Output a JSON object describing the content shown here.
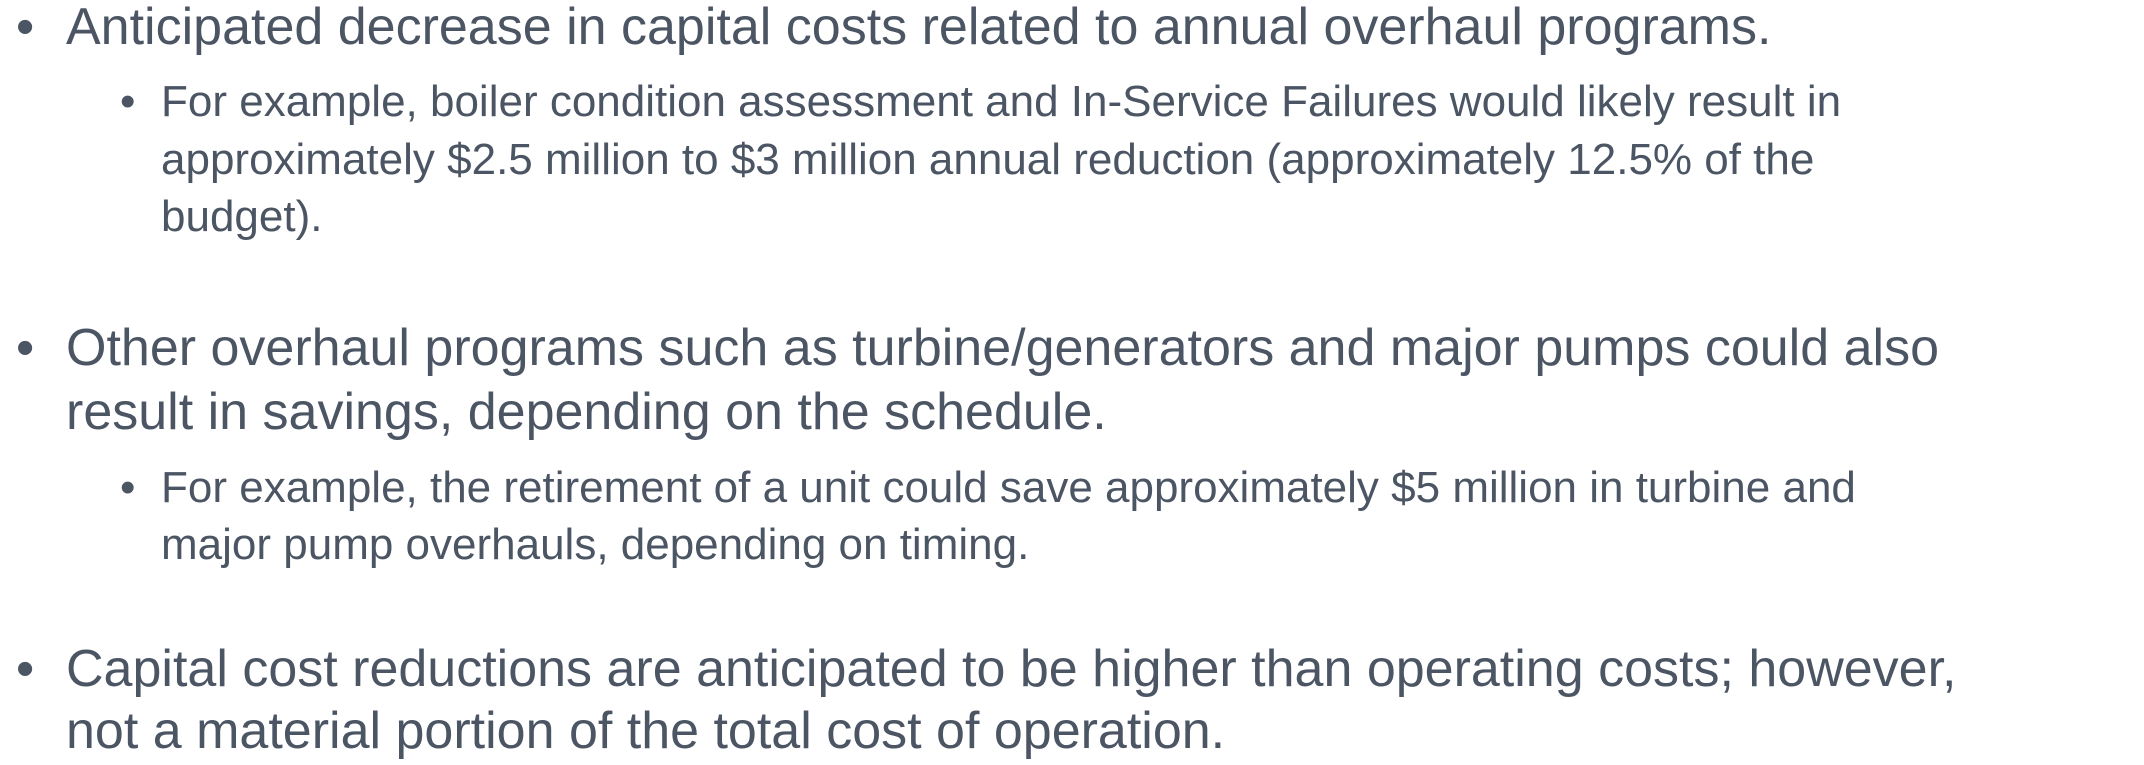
{
  "bullets": [
    {
      "lines": [
        "Anticipated decrease in capital costs related to annual overhaul programs."
      ],
      "sub": [
        {
          "lines": [
            "For example, boiler condition assessment and In-Service Failures would likely result in",
            "approximately $2.5 million to $3 million annual reduction (approximately 12.5% of the",
            "budget)."
          ]
        }
      ]
    },
    {
      "lines": [
        "Other overhaul programs such as turbine/generators and major pumps could also",
        "result in savings, depending on the schedule."
      ],
      "sub": [
        {
          "lines": [
            "For example, the retirement of a unit could save approximately $5 million in turbine and",
            "major pump overhauls, depending on timing."
          ]
        }
      ]
    },
    {
      "lines": [
        "Capital cost reductions are anticipated to be higher than operating costs; however,",
        "not a material portion of the total cost of operation."
      ],
      "sub": []
    }
  ]
}
